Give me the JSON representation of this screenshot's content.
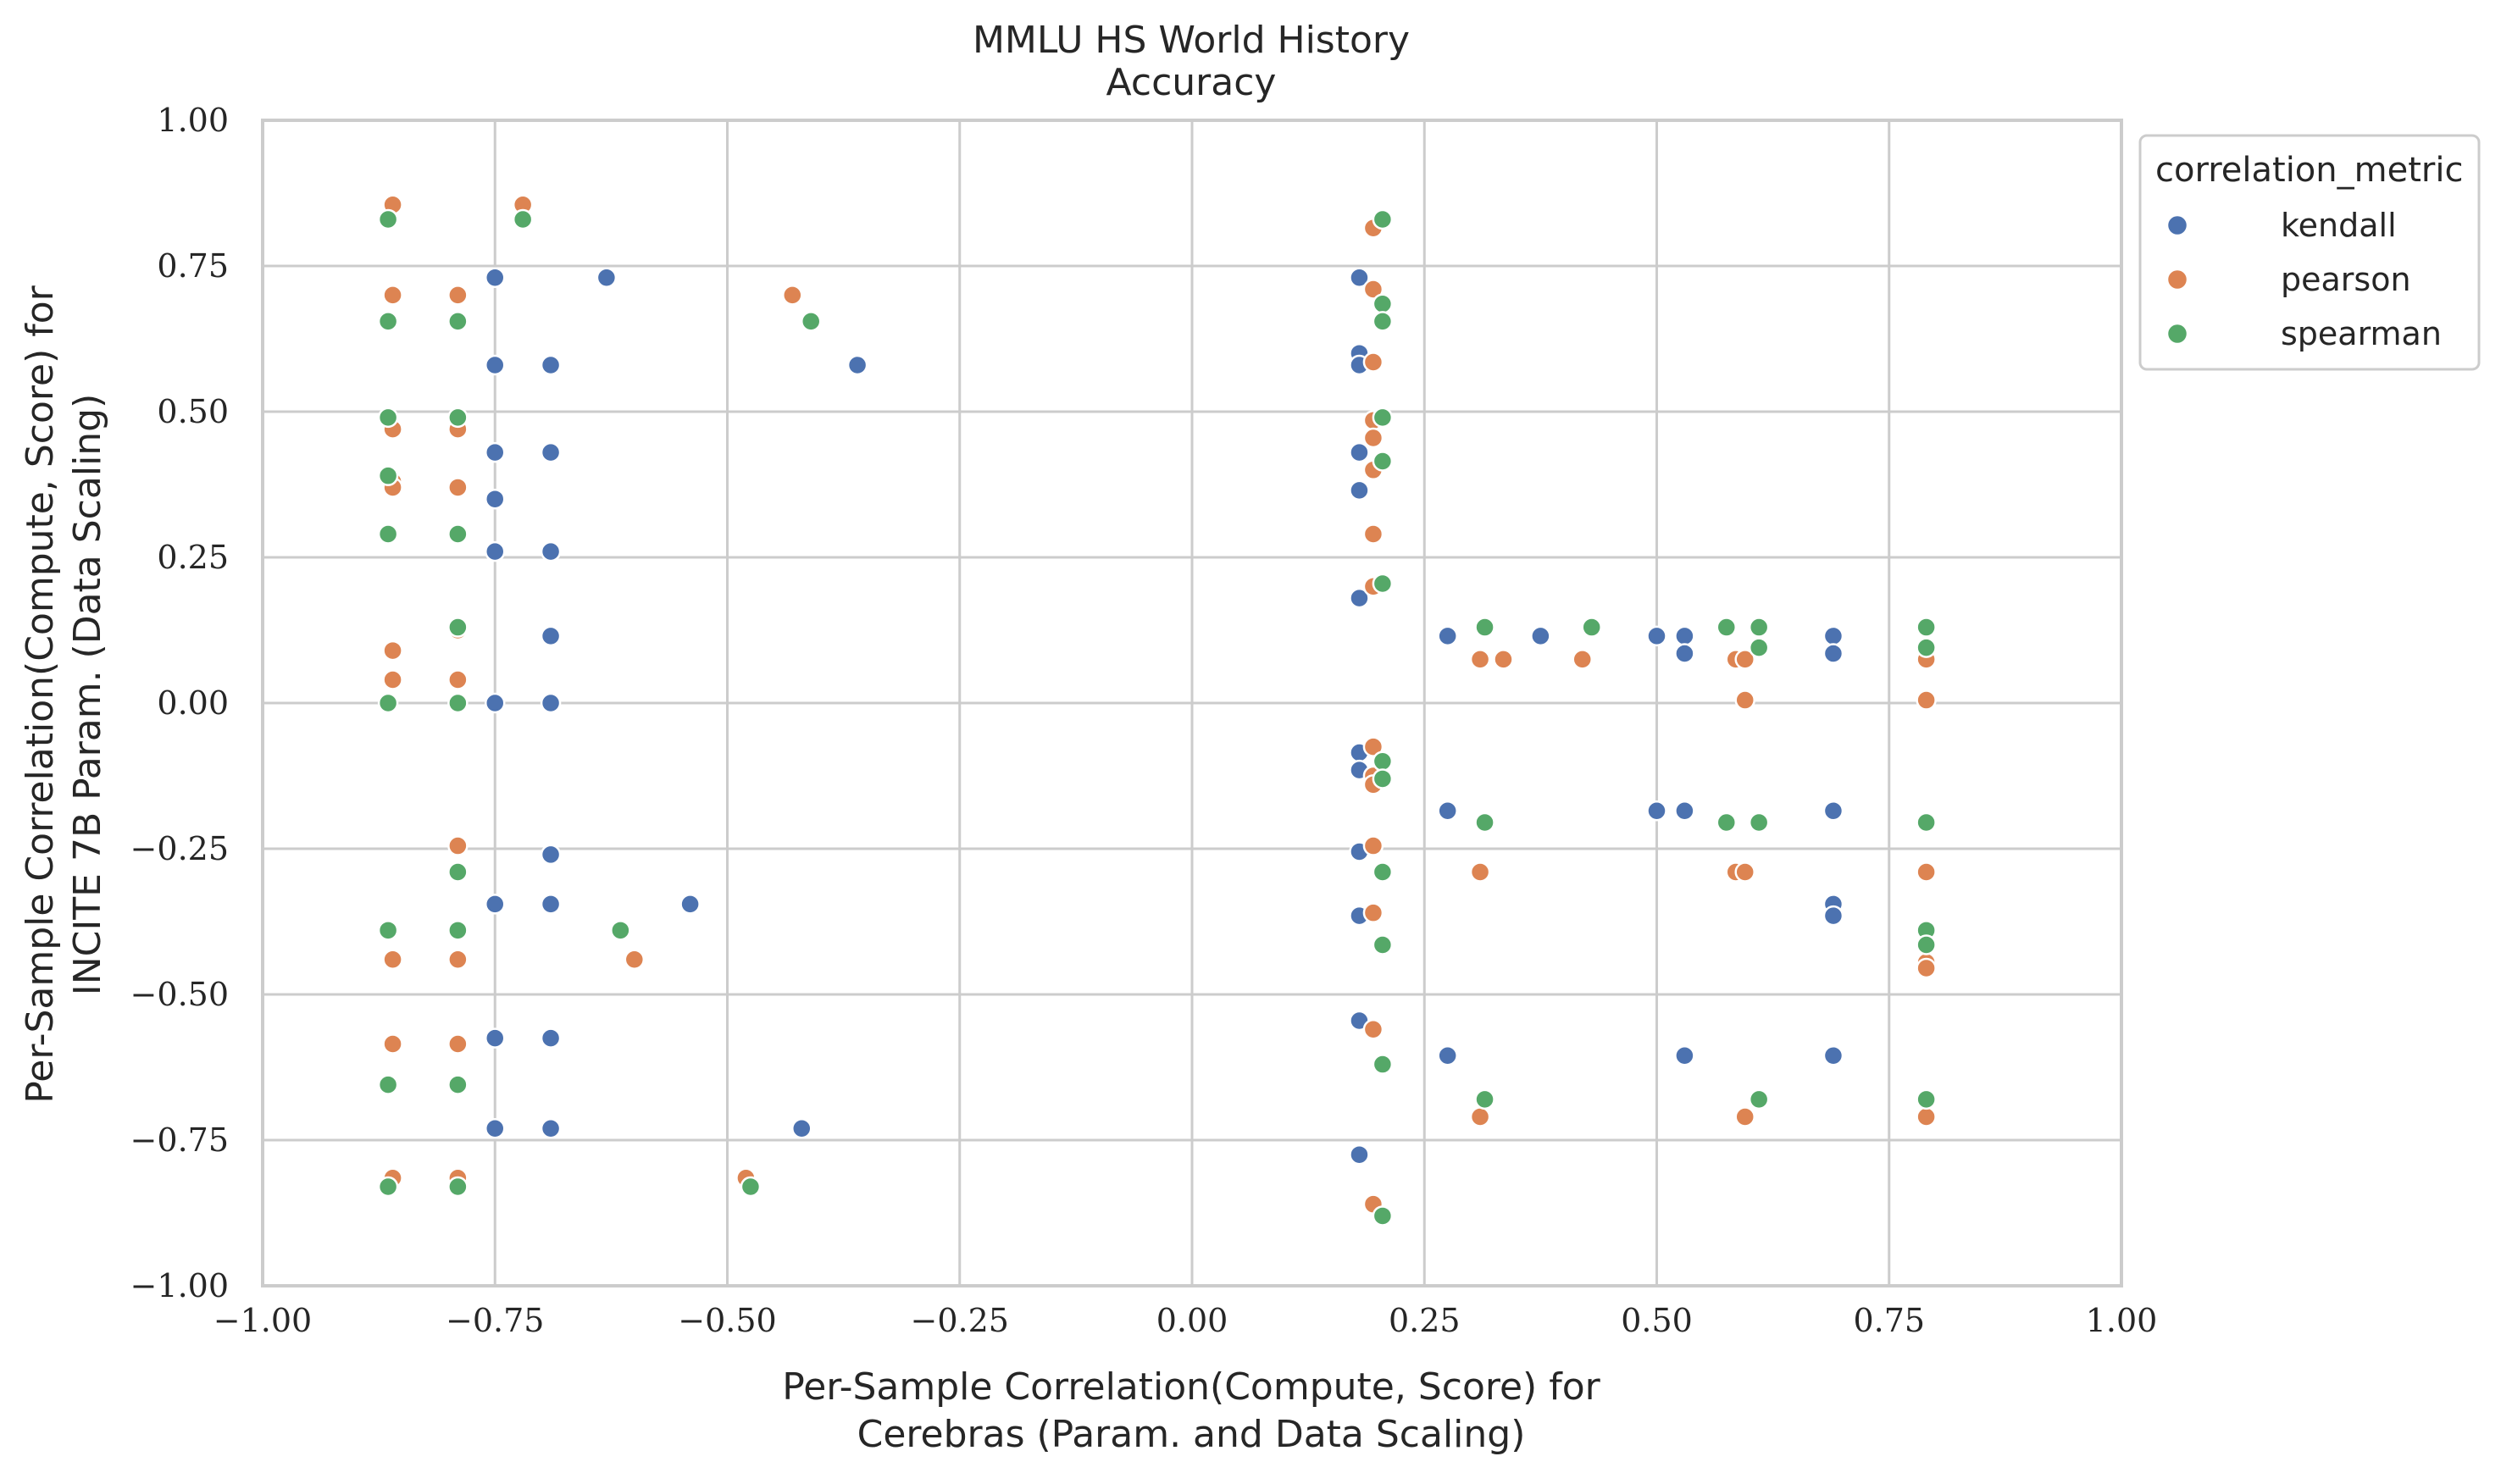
{
  "chart_data": {
    "type": "scatter",
    "title": "MMLU HS World History",
    "subtitle": "Accuracy",
    "xlabel": [
      "Per-Sample Correlation(Compute, Score) for",
      "Cerebras (Param. and Data Scaling)"
    ],
    "ylabel": [
      "Per-Sample Correlation(Compute, Score) for",
      "INCITE 7B Param. (Data Scaling)"
    ],
    "xlim": [
      -1.0,
      1.0
    ],
    "ylim": [
      -1.0,
      1.0
    ],
    "xticks": [
      "−1.00",
      "−0.75",
      "−0.50",
      "−0.25",
      "0.00",
      "0.25",
      "0.50",
      "0.75",
      "1.00"
    ],
    "yticks": [
      "1.00",
      "0.75",
      "0.50",
      "0.25",
      "0.00",
      "−0.25",
      "−0.50",
      "−0.75",
      "−1.00"
    ],
    "grid": true,
    "legend": {
      "title": "correlation_metric",
      "placement": "upper-right-outside"
    },
    "series": [
      {
        "name": "kendall",
        "color": "#4c72b0",
        "points": [
          [
            -0.75,
            0.73
          ],
          [
            -0.63,
            0.73
          ],
          [
            -0.75,
            0.58
          ],
          [
            -0.69,
            0.58
          ],
          [
            -0.36,
            0.58
          ],
          [
            -0.75,
            0.43
          ],
          [
            -0.69,
            0.43
          ],
          [
            -0.75,
            0.35
          ],
          [
            -0.75,
            0.26
          ],
          [
            -0.69,
            0.26
          ],
          [
            -0.69,
            0.115
          ],
          [
            -0.75,
            0.0
          ],
          [
            -0.69,
            0.0
          ],
          [
            -0.69,
            -0.26
          ],
          [
            -0.75,
            -0.345
          ],
          [
            -0.69,
            -0.345
          ],
          [
            -0.54,
            -0.345
          ],
          [
            -0.75,
            -0.575
          ],
          [
            -0.69,
            -0.575
          ],
          [
            -0.75,
            -0.73
          ],
          [
            -0.69,
            -0.73
          ],
          [
            -0.42,
            -0.73
          ],
          [
            0.18,
            0.73
          ],
          [
            0.18,
            0.6
          ],
          [
            0.18,
            0.58
          ],
          [
            0.18,
            0.43
          ],
          [
            0.18,
            0.365
          ],
          [
            0.18,
            0.18
          ],
          [
            0.18,
            -0.085
          ],
          [
            0.18,
            -0.115
          ],
          [
            0.18,
            -0.255
          ],
          [
            0.18,
            -0.365
          ],
          [
            0.18,
            -0.545
          ],
          [
            0.18,
            -0.775
          ],
          [
            0.275,
            0.115
          ],
          [
            0.375,
            0.115
          ],
          [
            0.5,
            0.115
          ],
          [
            0.53,
            0.115
          ],
          [
            0.53,
            0.085
          ],
          [
            0.69,
            0.115
          ],
          [
            0.69,
            0.085
          ],
          [
            0.275,
            -0.185
          ],
          [
            0.5,
            -0.185
          ],
          [
            0.53,
            -0.185
          ],
          [
            0.69,
            -0.185
          ],
          [
            0.69,
            -0.345
          ],
          [
            0.69,
            -0.365
          ],
          [
            0.275,
            -0.605
          ],
          [
            0.53,
            -0.605
          ],
          [
            0.69,
            -0.605
          ]
        ]
      },
      {
        "name": "pearson",
        "color": "#dd8452",
        "points": [
          [
            -0.86,
            0.855
          ],
          [
            -0.72,
            0.855
          ],
          [
            -0.86,
            0.7
          ],
          [
            -0.79,
            0.7
          ],
          [
            -0.43,
            0.7
          ],
          [
            -0.86,
            0.47
          ],
          [
            -0.79,
            0.47
          ],
          [
            -0.86,
            0.38
          ],
          [
            -0.86,
            0.37
          ],
          [
            -0.79,
            0.37
          ],
          [
            -0.79,
            0.125
          ],
          [
            -0.86,
            0.09
          ],
          [
            -0.86,
            0.04
          ],
          [
            -0.79,
            0.04
          ],
          [
            -0.79,
            -0.245
          ],
          [
            -0.86,
            -0.44
          ],
          [
            -0.79,
            -0.44
          ],
          [
            -0.6,
            -0.44
          ],
          [
            -0.86,
            -0.585
          ],
          [
            -0.79,
            -0.585
          ],
          [
            -0.86,
            -0.815
          ],
          [
            -0.79,
            -0.815
          ],
          [
            -0.48,
            -0.815
          ],
          [
            0.195,
            0.815
          ],
          [
            0.195,
            0.71
          ],
          [
            0.195,
            0.585
          ],
          [
            0.195,
            0.485
          ],
          [
            0.195,
            0.455
          ],
          [
            0.195,
            0.4
          ],
          [
            0.195,
            0.29
          ],
          [
            0.195,
            0.2
          ],
          [
            0.195,
            -0.075
          ],
          [
            0.195,
            -0.125
          ],
          [
            0.195,
            -0.14
          ],
          [
            0.195,
            -0.245
          ],
          [
            0.195,
            -0.36
          ],
          [
            0.195,
            -0.56
          ],
          [
            0.195,
            -0.86
          ],
          [
            0.31,
            0.075
          ],
          [
            0.335,
            0.075
          ],
          [
            0.42,
            0.075
          ],
          [
            0.585,
            0.075
          ],
          [
            0.595,
            0.075
          ],
          [
            0.595,
            0.005
          ],
          [
            0.79,
            0.075
          ],
          [
            0.79,
            0.005
          ],
          [
            0.31,
            -0.29
          ],
          [
            0.585,
            -0.29
          ],
          [
            0.595,
            -0.29
          ],
          [
            0.79,
            -0.29
          ],
          [
            0.79,
            -0.445
          ],
          [
            0.79,
            -0.455
          ],
          [
            0.31,
            -0.71
          ],
          [
            0.595,
            -0.71
          ],
          [
            0.79,
            -0.71
          ]
        ]
      },
      {
        "name": "spearman",
        "color": "#55a868",
        "points": [
          [
            -0.865,
            0.83
          ],
          [
            -0.72,
            0.83
          ],
          [
            -0.865,
            0.655
          ],
          [
            -0.79,
            0.655
          ],
          [
            -0.41,
            0.655
          ],
          [
            -0.865,
            0.49
          ],
          [
            -0.79,
            0.49
          ],
          [
            -0.865,
            0.39
          ],
          [
            -0.865,
            0.29
          ],
          [
            -0.79,
            0.29
          ],
          [
            -0.79,
            0.13
          ],
          [
            -0.865,
            0.0
          ],
          [
            -0.79,
            0.0
          ],
          [
            -0.79,
            -0.29
          ],
          [
            -0.865,
            -0.39
          ],
          [
            -0.79,
            -0.39
          ],
          [
            -0.615,
            -0.39
          ],
          [
            -0.865,
            -0.655
          ],
          [
            -0.79,
            -0.655
          ],
          [
            -0.865,
            -0.83
          ],
          [
            -0.79,
            -0.83
          ],
          [
            -0.475,
            -0.83
          ],
          [
            0.205,
            0.83
          ],
          [
            0.205,
            0.685
          ],
          [
            0.205,
            0.655
          ],
          [
            0.205,
            0.49
          ],
          [
            0.205,
            0.415
          ],
          [
            0.205,
            0.205
          ],
          [
            0.205,
            -0.1
          ],
          [
            0.205,
            -0.13
          ],
          [
            0.205,
            -0.29
          ],
          [
            0.205,
            -0.415
          ],
          [
            0.205,
            -0.62
          ],
          [
            0.205,
            -0.88
          ],
          [
            0.315,
            0.13
          ],
          [
            0.43,
            0.13
          ],
          [
            0.575,
            0.13
          ],
          [
            0.61,
            0.13
          ],
          [
            0.61,
            0.095
          ],
          [
            0.79,
            0.13
          ],
          [
            0.79,
            0.095
          ],
          [
            0.315,
            -0.205
          ],
          [
            0.575,
            -0.205
          ],
          [
            0.61,
            -0.205
          ],
          [
            0.79,
            -0.205
          ],
          [
            0.79,
            -0.39
          ],
          [
            0.79,
            -0.415
          ],
          [
            0.315,
            -0.68
          ],
          [
            0.61,
            -0.68
          ],
          [
            0.79,
            -0.68
          ]
        ]
      }
    ]
  }
}
